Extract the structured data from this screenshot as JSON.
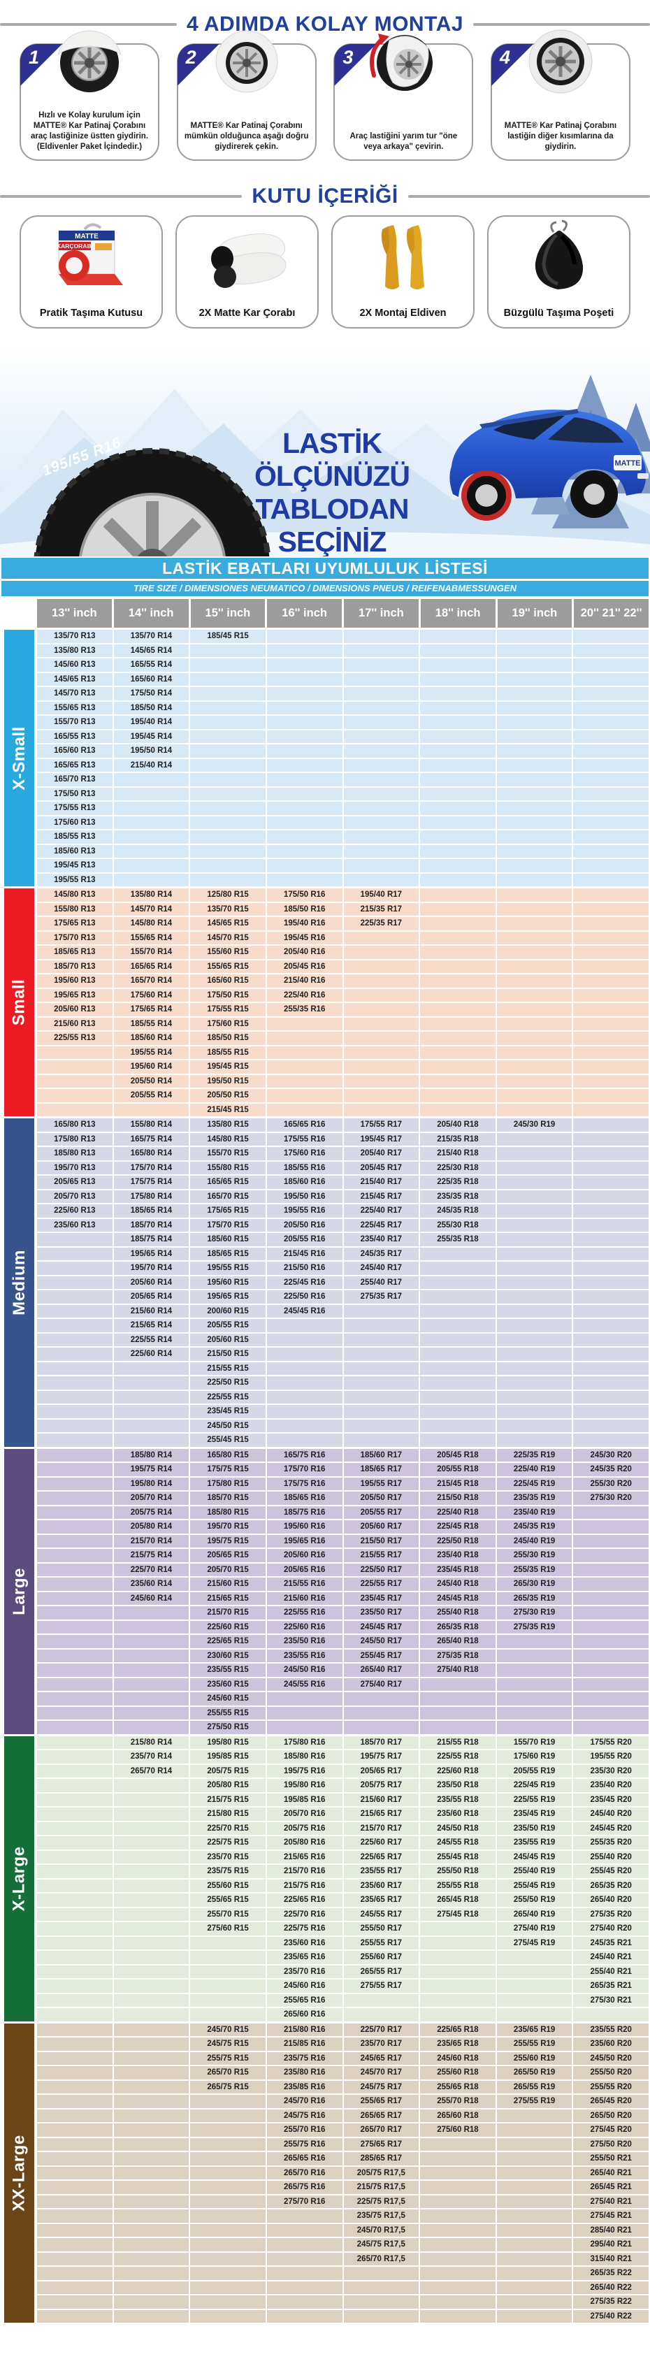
{
  "steps_section": {
    "title": "4 ADIMDA KOLAY MONTAJ",
    "steps": [
      {
        "num": "1",
        "caption": "Hızlı ve Kolay kurulum için MATTE® Kar Patinaj  Çorabını araç lastiğinize üstten giydirin. (Eldivenler Paket İçindedir.)"
      },
      {
        "num": "2",
        "caption": "MATTE® Kar Patinaj Çorabını mümkün olduğunca aşağı doğru giydirerek çekin."
      },
      {
        "num": "3",
        "caption": "Araç lastiğini yarım tur \"öne veya arkaya\" çevirin."
      },
      {
        "num": "4",
        "caption": "MATTE® Kar Patinaj Çorabını lastiğin diğer kısımlarına da giydirin."
      }
    ]
  },
  "box_section": {
    "title": "KUTU İÇERİĞİ",
    "items": [
      {
        "label": "Pratik Taşıma Kutusu"
      },
      {
        "label": "2X Matte Kar Çorabı"
      },
      {
        "label": "2X Montaj Eldiven"
      },
      {
        "label": "Büzgülü Taşıma Poşeti"
      }
    ]
  },
  "banner": {
    "tire_label": "195/55 R16",
    "headline_line1": "LASTİK ÖLÇÜNÜZÜ",
    "headline_line2": "TABLODAN SEÇİNİZ",
    "car_plate": "MATTE"
  },
  "table": {
    "title": "LASTİK EBATLARI UYUMLULUK LİSTESİ",
    "subtitle": "TIRE SIZE  /  DIMENSIONES NEUMATICO  /  DIMENSIONS PNEUS  /  REIFENABMESSUNGEN",
    "columns": [
      "13'' inch",
      "14'' inch",
      "15'' inch",
      "16'' inch",
      "17'' inch",
      "18'' inch",
      "19'' inch",
      "20'' 21'' 22''"
    ],
    "sections": [
      {
        "name": "X-Small",
        "strip_color": "#29a8e0",
        "row_color": "#d7e9f6",
        "cols": [
          [
            "135/70 R13",
            "135/80 R13",
            "145/60 R13",
            "145/65 R13",
            "145/70 R13",
            "155/65 R13",
            "155/70 R13",
            "165/55 R13",
            "165/60 R13",
            "165/65 R13",
            "165/70 R13",
            "175/50 R13",
            "175/55 R13",
            "175/60 R13",
            "185/55 R13",
            "185/60 R13",
            "195/45 R13",
            "195/55 R13"
          ],
          [
            "135/70 R14",
            "145/65 R14",
            "165/55 R14",
            "165/60 R14",
            "175/50 R14",
            "185/50 R14",
            "195/40 R14",
            "195/45 R14",
            "195/50 R14",
            "215/40 R14"
          ],
          [
            "185/45 R15"
          ],
          [],
          [],
          [],
          [],
          []
        ]
      },
      {
        "name": "Small",
        "strip_color": "#ec1b23",
        "row_color": "#f8dbca",
        "cols": [
          [
            "145/80 R13",
            "155/80 R13",
            "175/65 R13",
            "175/70 R13",
            "185/65 R13",
            "185/70 R13",
            "195/60 R13",
            "195/65 R13",
            "205/60 R13",
            "215/60 R13",
            "225/55 R13"
          ],
          [
            "135/80 R14",
            "145/70 R14",
            "145/80 R14",
            "155/65 R14",
            "155/70 R14",
            "165/65 R14",
            "165/70 R14",
            "175/60 R14",
            "175/65 R14",
            "185/55 R14",
            "185/60 R14",
            "195/55 R14",
            "195/60 R14",
            "205/50 R14",
            "205/55 R14"
          ],
          [
            "125/80 R15",
            "135/70 R15",
            "145/65 R15",
            "145/70 R15",
            "155/60 R15",
            "155/65 R15",
            "165/60 R15",
            "175/50 R15",
            "175/55 R15",
            "175/60 R15",
            "185/50 R15",
            "185/55 R15",
            "195/45 R15",
            "195/50 R15",
            "205/50 R15",
            "215/45 R15"
          ],
          [
            "175/50 R16",
            "185/50 R16",
            "195/40 R16",
            "195/45 R16",
            "205/40 R16",
            "205/45 R16",
            "215/40 R16",
            "225/40 R16",
            "255/35 R16"
          ],
          [
            "195/40 R17",
            "215/35 R17",
            "225/35 R17"
          ],
          [],
          [],
          []
        ]
      },
      {
        "name": "Medium",
        "strip_color": "#38548e",
        "row_color": "#d7d8e7",
        "cols": [
          [
            "165/80 R13",
            "175/80 R13",
            "185/80 R13",
            "195/70 R13",
            "205/65 R13",
            "205/70 R13",
            "225/60 R13",
            "235/60 R13"
          ],
          [
            "155/80 R14",
            "165/75 R14",
            "165/80 R14",
            "175/70 R14",
            "175/75 R14",
            "175/80 R14",
            "185/65 R14",
            "185/70 R14",
            "185/75 R14",
            "195/65 R14",
            "195/70 R14",
            "205/60 R14",
            "205/65 R14",
            "215/60 R14",
            "215/65 R14",
            "225/55 R14",
            "225/60 R14"
          ],
          [
            "135/80 R15",
            "145/80 R15",
            "155/70 R15",
            "155/80 R15",
            "165/65 R15",
            "165/70 R15",
            "175/65 R15",
            "175/70 R15",
            "185/60 R15",
            "185/65 R15",
            "195/55 R15",
            "195/60 R15",
            "195/65 R15",
            "200/60 R15",
            "205/55 R15",
            "205/60 R15",
            "215/50 R15",
            "215/55 R15",
            "225/50 R15",
            "225/55 R15",
            "235/45 R15",
            "245/50 R15",
            "255/45 R15"
          ],
          [
            "165/65 R16",
            "175/55 R16",
            "175/60 R16",
            "185/55 R16",
            "185/60 R16",
            "195/50 R16",
            "195/55 R16",
            "205/50 R16",
            "205/55 R16",
            "215/45 R16",
            "215/50 R16",
            "225/45 R16",
            "225/50 R16",
            "245/45 R16"
          ],
          [
            "175/55 R17",
            "195/45 R17",
            "205/40 R17",
            "205/45 R17",
            "215/40 R17",
            "215/45 R17",
            "225/40 R17",
            "225/45 R17",
            "235/40 R17",
            "245/35 R17",
            "245/40 R17",
            "255/40 R17",
            "275/35 R17"
          ],
          [
            "205/40 R18",
            "215/35 R18",
            "215/40 R18",
            "225/30 R18",
            "225/35 R18",
            "235/35 R18",
            "245/35 R18",
            "255/30 R18",
            "255/35 R18"
          ],
          [
            "245/30 R19"
          ],
          []
        ]
      },
      {
        "name": "Large",
        "strip_color": "#5c4b7e",
        "row_color": "#cec3dc",
        "cols": [
          [],
          [
            "185/80 R14",
            "195/75 R14",
            "195/80 R14",
            "205/70 R14",
            "205/75 R14",
            "205/80 R14",
            "215/70 R14",
            "215/75 R14",
            "225/70 R14",
            "235/60 R14",
            "245/60 R14"
          ],
          [
            "165/80 R15",
            "175/75 R15",
            "175/80 R15",
            "185/70 R15",
            "185/80 R15",
            "195/70 R15",
            "195/75 R15",
            "205/65 R15",
            "205/70 R15",
            "215/60 R15",
            "215/65 R15",
            "215/70 R15",
            "225/60 R15",
            "225/65 R15",
            "230/60 R15",
            "235/55 R15",
            "235/60 R15",
            "245/60 R15",
            "255/55 R15",
            "275/50 R15"
          ],
          [
            "165/75 R16",
            "175/70 R16",
            "175/75 R16",
            "185/65 R16",
            "185/75 R16",
            "195/60 R16",
            "195/65 R16",
            "205/60 R16",
            "205/65 R16",
            "215/55 R16",
            "215/60 R16",
            "225/55 R16",
            "225/60 R16",
            "235/50 R16",
            "235/55 R16",
            "245/50 R16",
            "245/55 R16"
          ],
          [
            "185/60 R17",
            "185/65 R17",
            "195/55 R17",
            "205/50 R17",
            "205/55 R17",
            "205/60 R17",
            "215/50 R17",
            "215/55 R17",
            "225/50 R17",
            "225/55 R17",
            "235/45 R17",
            "235/50 R17",
            "245/45 R17",
            "245/50 R17",
            "255/45 R17",
            "265/40 R17",
            "275/40 R17"
          ],
          [
            "205/45 R18",
            "205/55 R18",
            "215/45 R18",
            "215/50 R18",
            "225/40 R18",
            "225/45 R18",
            "225/50 R18",
            "235/40 R18",
            "235/45 R18",
            "245/40 R18",
            "245/45 R18",
            "255/40 R18",
            "265/35 R18",
            "265/40 R18",
            "275/35 R18",
            "275/40 R18"
          ],
          [
            "225/35 R19",
            "225/40 R19",
            "225/45 R19",
            "235/35 R19",
            "235/40 R19",
            "245/35 R19",
            "245/40 R19",
            "255/30 R19",
            "255/35 R19",
            "265/30 R19",
            "265/35 R19",
            "275/30 R19",
            "275/35 R19"
          ],
          [
            "245/30 R20",
            "245/35 R20",
            "255/30 R20",
            "275/30 R20"
          ]
        ]
      },
      {
        "name": "X-Large",
        "strip_color": "#156f39",
        "row_color": "#e3ebdd",
        "cols": [
          [],
          [
            "215/80 R14",
            "235/70 R14",
            "265/70 R14"
          ],
          [
            "195/80 R15",
            "195/85 R15",
            "205/75 R15",
            "205/80 R15",
            "215/75 R15",
            "215/80 R15",
            "225/70 R15",
            "225/75 R15",
            "235/70 R15",
            "235/75 R15",
            "255/60 R15",
            "255/65 R15",
            "255/70 R15",
            "275/60 R15"
          ],
          [
            "175/80 R16",
            "185/80 R16",
            "195/75 R16",
            "195/80 R16",
            "195/85 R16",
            "205/70 R16",
            "205/75 R16",
            "205/80 R16",
            "215/65 R16",
            "215/70 R16",
            "215/75 R16",
            "225/65 R16",
            "225/70 R16",
            "225/75 R16",
            "235/60 R16",
            "235/65 R16",
            "235/70 R16",
            "245/60 R16",
            "255/65 R16",
            "265/60 R16"
          ],
          [
            "185/70 R17",
            "195/75 R17",
            "205/65 R17",
            "205/75 R17",
            "215/60 R17",
            "215/65 R17",
            "215/70 R17",
            "225/60 R17",
            "225/65 R17",
            "235/55 R17",
            "235/60 R17",
            "235/65 R17",
            "245/55 R17",
            "255/50 R17",
            "255/55 R17",
            "255/60 R17",
            "265/55 R17",
            "275/55 R17"
          ],
          [
            "215/55 R18",
            "225/55 R18",
            "225/60 R18",
            "235/50 R18",
            "235/55 R18",
            "235/60 R18",
            "245/50 R18",
            "245/55 R18",
            "255/45 R18",
            "255/50 R18",
            "255/55 R18",
            "265/45 R18",
            "275/45 R18"
          ],
          [
            "155/70 R19",
            "175/60 R19",
            "205/55 R19",
            "225/45 R19",
            "225/55 R19",
            "235/45 R19",
            "235/50 R19",
            "235/55 R19",
            "245/45 R19",
            "255/40 R19",
            "255/45 R19",
            "255/50 R19",
            "265/40 R19",
            "275/40 R19",
            "275/45 R19"
          ],
          [
            "175/55 R20",
            "195/55 R20",
            "235/30 R20",
            "235/40 R20",
            "235/45 R20",
            "245/40 R20",
            "245/45 R20",
            "255/35 R20",
            "255/40 R20",
            "255/45 R20",
            "265/35 R20",
            "265/40 R20",
            "275/35 R20",
            "275/40 R20",
            "245/35 R21",
            "245/40 R21",
            "255/40 R21",
            "265/35 R21",
            "275/30 R21"
          ]
        ]
      },
      {
        "name": "XX-Large",
        "strip_color": "#6b4418",
        "row_color": "#dcd1c1",
        "cols": [
          [],
          [],
          [
            "245/70 R15",
            "245/75 R15",
            "255/75 R15",
            "265/70 R15",
            "265/75 R15"
          ],
          [
            "215/80 R16",
            "215/85 R16",
            "235/75 R16",
            "235/80 R16",
            "235/85 R16",
            "245/70 R16",
            "245/75 R16",
            "255/70 R16",
            "255/75 R16",
            "265/65 R16",
            "265/70 R16",
            "265/75 R16",
            "275/70 R16"
          ],
          [
            "225/70 R17",
            "235/70 R17",
            "245/65 R17",
            "245/70 R17",
            "245/75 R17",
            "255/65 R17",
            "265/65 R17",
            "265/70 R17",
            "275/65 R17",
            "285/65 R17",
            "205/75 R17,5",
            "215/75 R17,5",
            "225/75 R17,5",
            "235/75 R17,5",
            "245/70 R17,5",
            "245/75 R17,5",
            "265/70 R17,5"
          ],
          [
            "225/65 R18",
            "235/65 R18",
            "245/60 R18",
            "255/60 R18",
            "255/65 R18",
            "255/70 R18",
            "265/60 R18",
            "275/60 R18"
          ],
          [
            "235/65 R19",
            "255/55 R19",
            "255/60 R19",
            "265/50 R19",
            "265/55 R19",
            "275/55 R19"
          ],
          [
            "235/55 R20",
            "235/60 R20",
            "245/50 R20",
            "255/50 R20",
            "255/55 R20",
            "265/45 R20",
            "265/50 R20",
            "275/45 R20",
            "275/50 R20",
            "255/50 R21",
            "265/40 R21",
            "265/45 R21",
            "275/40 R21",
            "275/45 R21",
            "285/40 R21",
            "295/40 R21",
            "315/40 R21",
            "265/35 R22",
            "265/40 R22",
            "275/35 R22",
            "275/40 R22"
          ]
        ]
      }
    ]
  }
}
